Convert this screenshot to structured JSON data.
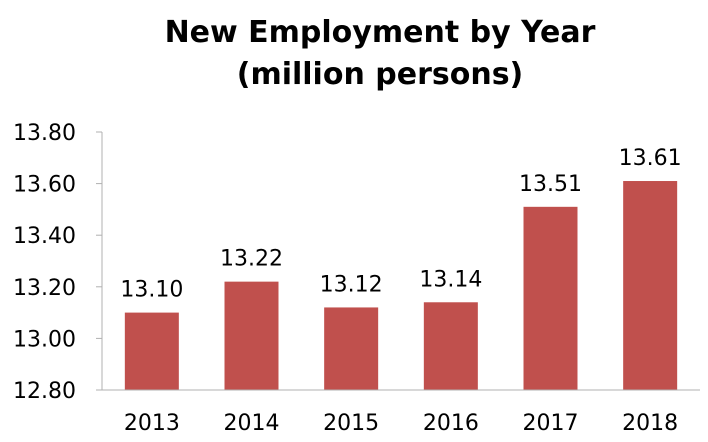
{
  "chart_data": {
    "type": "bar",
    "title": "New Employment by Year",
    "subtitle": "(million persons)",
    "xlabel": "",
    "ylabel": "",
    "categories": [
      "2013",
      "2014",
      "2015",
      "2016",
      "2017",
      "2018"
    ],
    "values": [
      13.1,
      13.22,
      13.12,
      13.14,
      13.51,
      13.61
    ],
    "data_labels": [
      "13.10",
      "13.22",
      "13.12",
      "13.14",
      "13.51",
      "13.61"
    ],
    "ylim": [
      12.8,
      13.8
    ],
    "yticks": [
      12.8,
      13.0,
      13.2,
      13.4,
      13.6,
      13.8
    ],
    "ytick_labels": [
      "12.80",
      "13.00",
      "13.20",
      "13.40",
      "13.60",
      "13.80"
    ],
    "grid": false,
    "legend": "none",
    "bar_color": "#c0504d",
    "axis_color": "#b0b0b0"
  }
}
